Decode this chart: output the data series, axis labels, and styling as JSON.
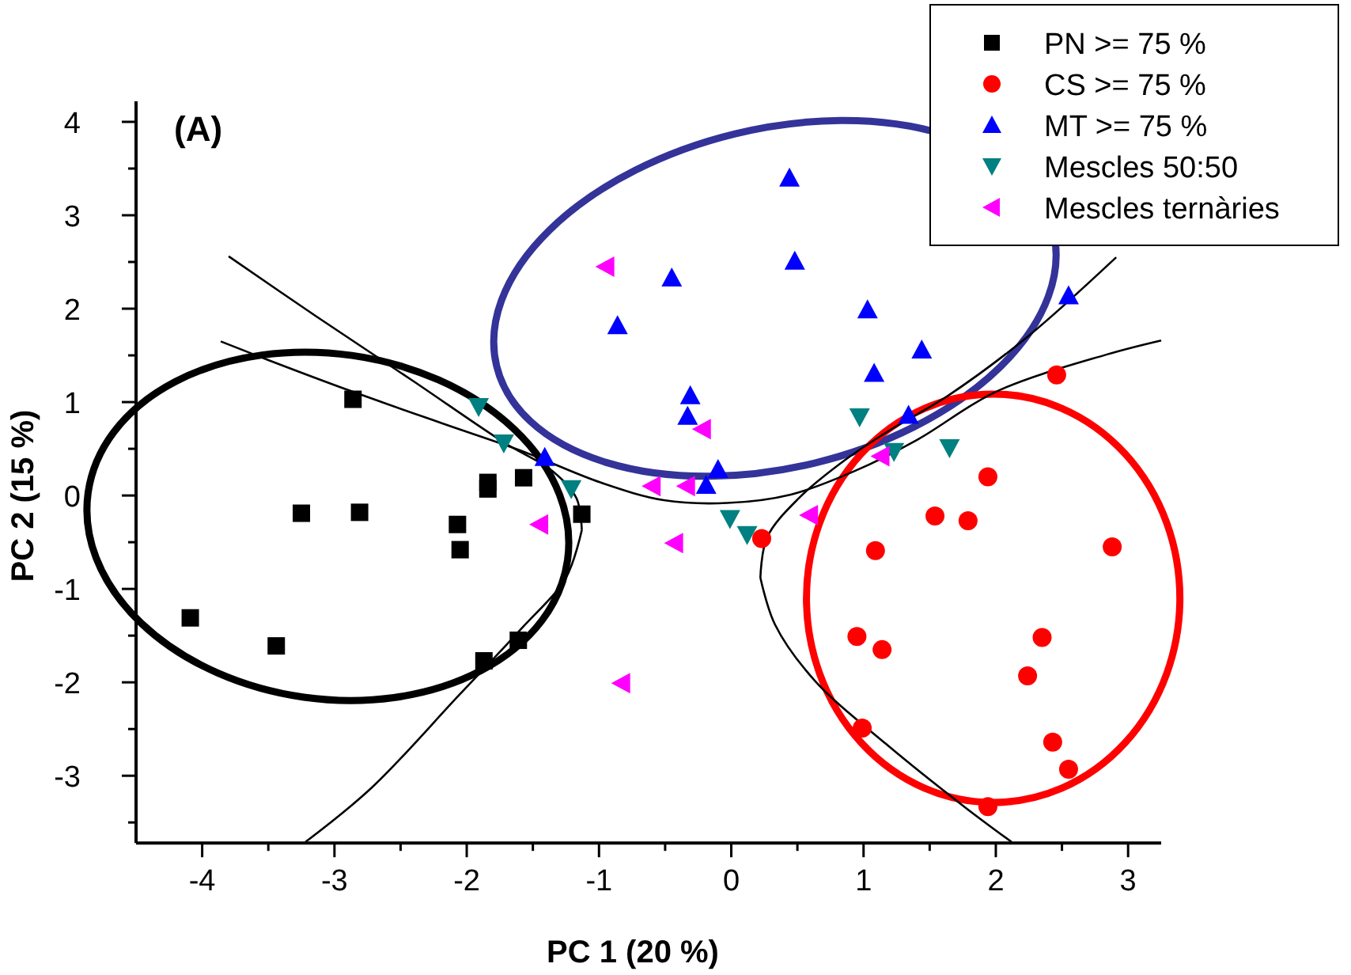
{
  "chart_data": {
    "type": "scatter",
    "title": "(A)",
    "xlabel": "PC 1 (20 %)",
    "ylabel": "PC 2 (15 %)",
    "xlim": [
      -4.5,
      3.25
    ],
    "ylim": [
      -3.72,
      4.22
    ],
    "xticks": [
      {
        "value": -4,
        "label": "-4"
      },
      {
        "value": -3.5,
        "label": null
      },
      {
        "value": -3,
        "label": "-3"
      },
      {
        "value": -2.5,
        "label": null
      },
      {
        "value": -2,
        "label": "-2"
      },
      {
        "value": -1.5,
        "label": null
      },
      {
        "value": -1,
        "label": "-1"
      },
      {
        "value": -0.5,
        "label": null
      },
      0,
      {
        "value": 0.5,
        "label": null
      },
      1,
      {
        "value": 1.5,
        "label": null
      },
      2,
      {
        "value": 2.5,
        "label": null
      },
      3
    ],
    "yticks": [
      {
        "value": -3.5,
        "label": null
      },
      {
        "value": -3,
        "label": "-3"
      },
      {
        "value": -2.5,
        "label": null
      },
      {
        "value": -2,
        "label": "-2"
      },
      {
        "value": -1.5,
        "label": null
      },
      {
        "value": -1,
        "label": "-1"
      },
      {
        "value": -0.5,
        "label": null
      },
      0,
      {
        "value": 0.5,
        "label": null
      },
      1,
      {
        "value": 1.5,
        "label": null
      },
      2,
      {
        "value": 2.5,
        "label": null
      },
      3,
      {
        "value": 3.5,
        "label": null
      },
      4
    ],
    "grid": false,
    "legend": "top right",
    "line_style": "solid",
    "series": [
      {
        "name": "PN >= 75 %",
        "marker": "square",
        "color": "#000000",
        "x": [
          -2.86,
          -3.25,
          -2.81,
          -4.09,
          -3.44,
          -2.07,
          -2.05,
          -1.84,
          -1.84,
          -1.57,
          -1.13,
          -1.61,
          -1.87
        ],
        "values": [
          1.03,
          -0.19,
          -0.18,
          -1.31,
          -1.61,
          -0.31,
          -0.58,
          0.14,
          0.07,
          0.19,
          -0.2,
          -1.55,
          -1.77
        ]
      },
      {
        "name": "CS >= 75 %",
        "marker": "circle",
        "color": "#ff0000",
        "x": [
          2.46,
          1.94,
          1.54,
          1.79,
          1.09,
          2.88,
          0.23,
          0.95,
          1.14,
          2.35,
          2.24,
          0.99,
          2.43,
          2.55,
          1.94
        ],
        "values": [
          1.29,
          0.2,
          -0.22,
          -0.27,
          -0.59,
          -0.55,
          -0.46,
          -1.51,
          -1.65,
          -1.52,
          -1.93,
          -2.49,
          -2.64,
          -2.93,
          -3.33
        ]
      },
      {
        "name": "MT >= 75 %",
        "marker": "triangle",
        "color": "#0000ff",
        "x": [
          0.44,
          0.48,
          -0.45,
          -0.86,
          1.03,
          1.44,
          1.08,
          2.55,
          -0.31,
          -0.33,
          1.34,
          -0.1,
          -0.19,
          -1.41
        ],
        "values": [
          3.4,
          2.51,
          2.33,
          1.82,
          1.99,
          1.56,
          1.31,
          2.14,
          1.07,
          0.85,
          0.86,
          0.28,
          0.11,
          0.41
        ]
      },
      {
        "name": "Mescles 50:50",
        "marker": "triangle-down",
        "color": "#008080",
        "x": [
          0.97,
          1.65,
          1.23,
          -0.01,
          0.12,
          -1.21,
          -1.91,
          -1.72
        ],
        "values": [
          0.84,
          0.51,
          0.47,
          -0.25,
          -0.42,
          0.07,
          0.95,
          0.56
        ]
      },
      {
        "name": "Mescles ternàries",
        "marker": "triangle-left",
        "color": "#ff00ff",
        "x": [
          -0.95,
          -0.22,
          -0.6,
          -0.34,
          1.13,
          0.59,
          -1.45,
          -0.43,
          -0.83
        ],
        "values": [
          2.45,
          0.71,
          0.1,
          0.1,
          0.42,
          -0.21,
          -0.31,
          -0.51,
          -2.01
        ]
      },
      {
        "type": "line",
        "color": "#000000",
        "x": [
          -3.8,
          -3.14,
          -2.42,
          -1.71,
          -1.35,
          -1.17,
          -1.13
        ],
        "values": [
          2.56,
          1.92,
          1.24,
          0.56,
          0.26,
          -0.03,
          -0.37
        ]
      },
      {
        "type": "line",
        "color": "#000000",
        "x": [
          -1.13,
          -1.25,
          -1.59,
          -2.06,
          -2.72,
          -3.22
        ],
        "values": [
          -0.37,
          -0.88,
          -1.43,
          -2.14,
          -3.13,
          -3.71
        ]
      },
      {
        "type": "line",
        "color": "#000000",
        "x": [
          -3.86,
          -3.5,
          -2.86,
          -2.18,
          -1.59,
          -0.99,
          -0.51,
          -0.03,
          0.45,
          0.93,
          1.41,
          2.0,
          2.84,
          3.25
        ],
        "values": [
          1.65,
          1.45,
          1.11,
          0.77,
          0.48,
          0.14,
          -0.05,
          -0.08,
          0.01,
          0.26,
          0.6,
          1.11,
          1.51,
          1.66
        ]
      },
      {
        "type": "line",
        "color": "#000000",
        "x": [
          2.91,
          2.24,
          1.64,
          1.2,
          0.87,
          0.51,
          0.27,
          0.22
        ],
        "values": [
          2.55,
          1.7,
          1.07,
          0.7,
          0.39,
          -0.03,
          -0.45,
          -0.88
        ]
      },
      {
        "type": "line",
        "color": "#000000",
        "x": [
          0.22,
          0.33,
          0.63,
          1.17,
          1.76,
          2.12
        ],
        "values": [
          -0.88,
          -1.38,
          -1.98,
          -2.66,
          -3.33,
          -3.71
        ]
      }
    ]
  }
}
